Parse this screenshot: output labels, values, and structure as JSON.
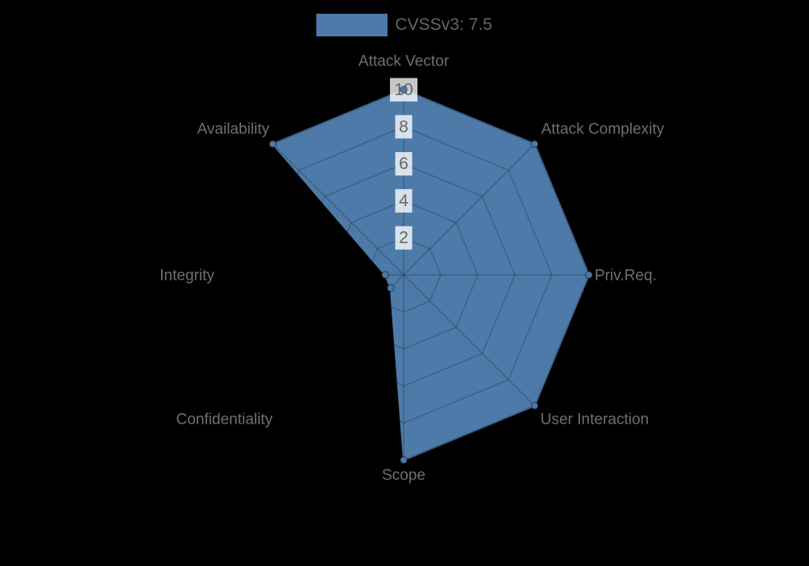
{
  "page": {
    "background": "#000000"
  },
  "legend": {
    "items": [
      {
        "label": "CVSSv3: 7.5",
        "color": "#4d7aa8"
      }
    ]
  },
  "chart_data": {
    "type": "radar",
    "title": "",
    "categories": [
      "Attack Vector",
      "Attack Complexity",
      "Priv.Req.",
      "User Interaction",
      "Scope",
      "Confidentiality",
      "Integrity",
      "Availability"
    ],
    "series": [
      {
        "name": "CVSSv3: 7.5",
        "color": "#4d7aa8",
        "values": [
          10,
          10,
          10,
          10,
          10,
          1,
          1,
          10
        ]
      }
    ],
    "axis_range": {
      "min": 0,
      "max": 10
    },
    "tick_labels": [
      "2",
      "4",
      "6",
      "8",
      "10"
    ],
    "grid": "polygon",
    "legend_position": "top",
    "colors": {
      "series_fill": "#4d7aa8",
      "grid_line": "rgba(0,0,0,0.22)",
      "axis_label": "#6f6f6f",
      "tick_text": "#666666",
      "tick_backdrop": "rgba(255,255,255,0.78)",
      "point_border": "rgba(0,0,0,0.28)",
      "background": "#000000"
    }
  }
}
